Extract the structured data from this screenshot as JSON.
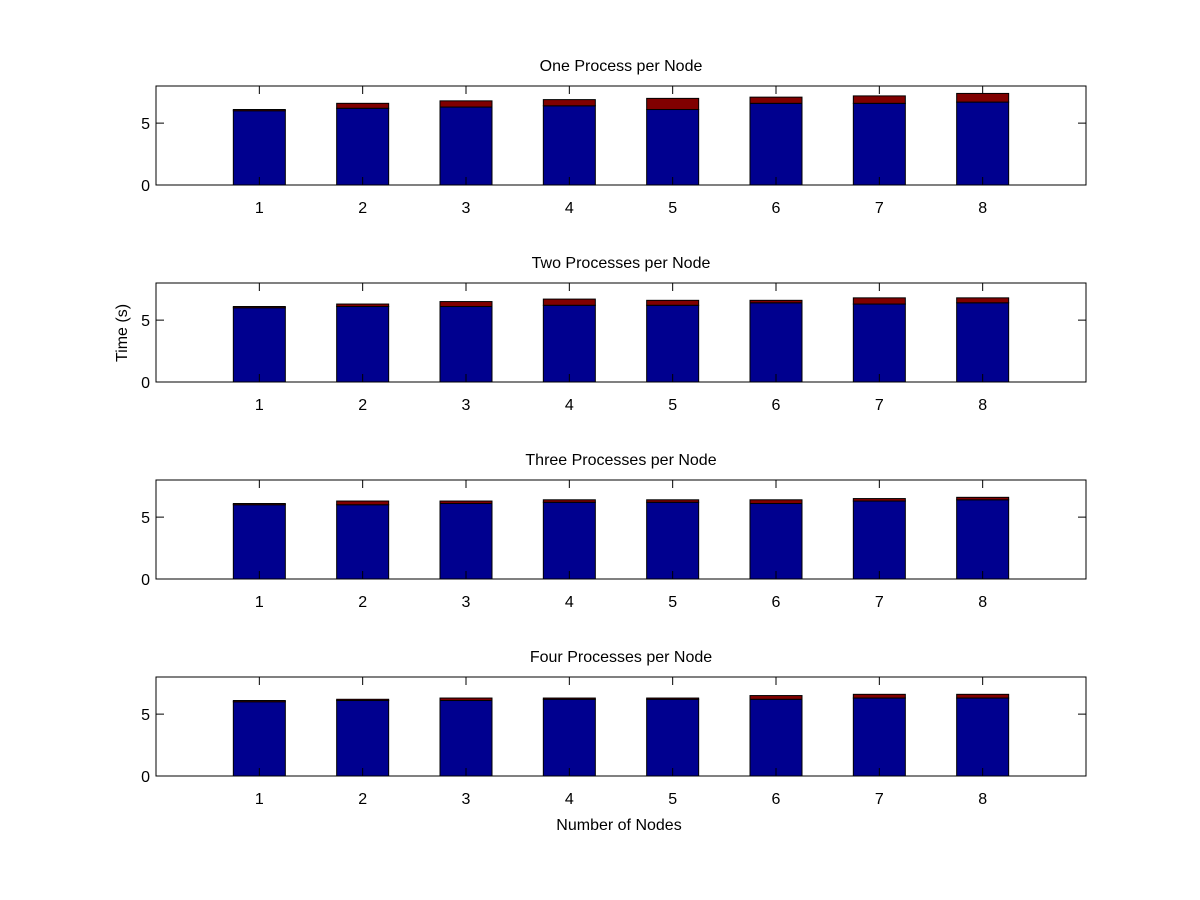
{
  "figure": {
    "ylabel": "Time (s)",
    "xlabel": "Number of Nodes"
  },
  "colors": {
    "base": "#00008F",
    "top": "#800000",
    "edge": "#000000",
    "axis": "#000000"
  },
  "chart_data": [
    {
      "type": "bar",
      "stacked": true,
      "title": "One Process per Node",
      "categories": [
        "1",
        "2",
        "3",
        "4",
        "5",
        "6",
        "7",
        "8"
      ],
      "series": [
        {
          "values": [
            6.0,
            6.2,
            6.3,
            6.4,
            6.1,
            6.6,
            6.6,
            6.7
          ]
        },
        {
          "values": [
            0.1,
            0.4,
            0.5,
            0.5,
            0.9,
            0.5,
            0.6,
            0.7
          ]
        }
      ],
      "ylim": [
        0,
        8
      ],
      "yticks": [
        "0",
        "5"
      ],
      "grid": false
    },
    {
      "type": "bar",
      "stacked": true,
      "title": "Two Processes per Node",
      "categories": [
        "1",
        "2",
        "3",
        "4",
        "5",
        "6",
        "7",
        "8"
      ],
      "series": [
        {
          "values": [
            6.0,
            6.1,
            6.1,
            6.2,
            6.2,
            6.4,
            6.3,
            6.4
          ]
        },
        {
          "values": [
            0.1,
            0.2,
            0.4,
            0.5,
            0.4,
            0.2,
            0.5,
            0.4
          ]
        }
      ],
      "ylim": [
        0,
        8
      ],
      "yticks": [
        "0",
        "5"
      ],
      "grid": false
    },
    {
      "type": "bar",
      "stacked": true,
      "title": "Three Processes per Node",
      "categories": [
        "1",
        "2",
        "3",
        "4",
        "5",
        "6",
        "7",
        "8"
      ],
      "series": [
        {
          "values": [
            6.0,
            6.0,
            6.1,
            6.2,
            6.2,
            6.1,
            6.3,
            6.4
          ]
        },
        {
          "values": [
            0.1,
            0.3,
            0.2,
            0.2,
            0.2,
            0.3,
            0.2,
            0.2
          ]
        }
      ],
      "ylim": [
        0,
        8
      ],
      "yticks": [
        "0",
        "5"
      ],
      "grid": false
    },
    {
      "type": "bar",
      "stacked": true,
      "title": "Four Processes per Node",
      "categories": [
        "1",
        "2",
        "3",
        "4",
        "5",
        "6",
        "7",
        "8"
      ],
      "series": [
        {
          "values": [
            6.0,
            6.1,
            6.1,
            6.2,
            6.2,
            6.2,
            6.3,
            6.3
          ]
        },
        {
          "values": [
            0.1,
            0.1,
            0.2,
            0.1,
            0.1,
            0.3,
            0.3,
            0.3
          ]
        }
      ],
      "ylim": [
        0,
        8
      ],
      "yticks": [
        "0",
        "5"
      ],
      "grid": false
    }
  ]
}
